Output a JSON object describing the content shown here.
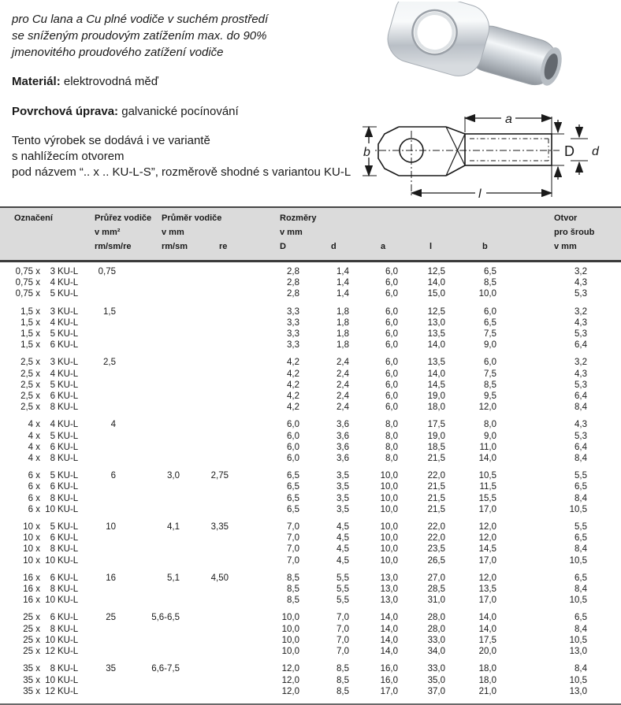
{
  "colors": {
    "header_bg": "#dbdbdb",
    "rule": "#3a3a3a",
    "text": "#1a1a1a"
  },
  "intro": {
    "lines": [
      "pro Cu lana a Cu plné vodiče v suchém prostředí",
      "se sníženým proudovým zatížením max. do 90%",
      "jmenovitého proudového zatížení vodiče"
    ]
  },
  "specs": {
    "material_label": "Materiál:",
    "material_value": "elektrovodná měď",
    "surface_label": "Povrchová úprava:",
    "surface_value": "galvanické pocínování"
  },
  "variant": {
    "lines": [
      "Tento výrobek se dodává i ve variantě",
      "s nahlížecím otvorem",
      "pod názvem “.. x .. KU-L-S”, rozměrově shodné s variantou KU-L"
    ]
  },
  "diagram": {
    "labels": {
      "a": "a",
      "b": "b",
      "D": "D",
      "d": "d",
      "l": "l"
    }
  },
  "table": {
    "kul_suffix": "KU-L",
    "header": {
      "designation": "Označení",
      "cross_title": "Průřez vodiče",
      "cross_unit": "v mm²",
      "cross_sub": "rm/sm/re",
      "dia_title": "Průměr vodiče",
      "dia_unit": "v mm",
      "dia_sub": "rm/sm",
      "dia_sub2": "re",
      "dims_title": "Rozměry",
      "dims_unit": "v mm",
      "dim_cols": [
        "D",
        "d",
        "a",
        "l",
        "b"
      ],
      "hole_title": "Otvor",
      "hole_sub": "pro šroub",
      "hole_unit": "v mm"
    },
    "groups": [
      {
        "rows": [
          [
            "0,75 x",
            "3",
            "0,75",
            "",
            "",
            "2,8",
            "1,4",
            "6,0",
            "12,5",
            "6,5",
            "3,2"
          ],
          [
            "0,75 x",
            "4",
            "",
            "",
            "",
            "2,8",
            "1,4",
            "6,0",
            "14,0",
            "8,5",
            "4,3"
          ],
          [
            "0,75 x",
            "5",
            "",
            "",
            "",
            "2,8",
            "1,4",
            "6,0",
            "15,0",
            "10,0",
            "5,3"
          ]
        ]
      },
      {
        "rows": [
          [
            "1,5 x",
            "3",
            "1,5",
            "",
            "",
            "3,3",
            "1,8",
            "6,0",
            "12,5",
            "6,0",
            "3,2"
          ],
          [
            "1,5 x",
            "4",
            "",
            "",
            "",
            "3,3",
            "1,8",
            "6,0",
            "13,0",
            "6,5",
            "4,3"
          ],
          [
            "1,5 x",
            "5",
            "",
            "",
            "",
            "3,3",
            "1,8",
            "6,0",
            "13,5",
            "7,5",
            "5,3"
          ],
          [
            "1,5 x",
            "6",
            "",
            "",
            "",
            "3,3",
            "1,8",
            "6,0",
            "14,0",
            "9,0",
            "6,4"
          ]
        ]
      },
      {
        "rows": [
          [
            "2,5 x",
            "3",
            "2,5",
            "",
            "",
            "4,2",
            "2,4",
            "6,0",
            "13,5",
            "6,0",
            "3,2"
          ],
          [
            "2,5 x",
            "4",
            "",
            "",
            "",
            "4,2",
            "2,4",
            "6,0",
            "14,0",
            "7,5",
            "4,3"
          ],
          [
            "2,5 x",
            "5",
            "",
            "",
            "",
            "4,2",
            "2,4",
            "6,0",
            "14,5",
            "8,5",
            "5,3"
          ],
          [
            "2,5 x",
            "6",
            "",
            "",
            "",
            "4,2",
            "2,4",
            "6,0",
            "19,0",
            "9,5",
            "6,4"
          ],
          [
            "2,5 x",
            "8",
            "",
            "",
            "",
            "4,2",
            "2,4",
            "6,0",
            "18,0",
            "12,0",
            "8,4"
          ]
        ]
      },
      {
        "rows": [
          [
            "4 x",
            "4",
            "4",
            "",
            "",
            "6,0",
            "3,6",
            "8,0",
            "17,5",
            "8,0",
            "4,3"
          ],
          [
            "4 x",
            "5",
            "",
            "",
            "",
            "6,0",
            "3,6",
            "8,0",
            "19,0",
            "9,0",
            "5,3"
          ],
          [
            "4 x",
            "6",
            "",
            "",
            "",
            "6,0",
            "3,6",
            "8,0",
            "18,5",
            "11,0",
            "6,4"
          ],
          [
            "4 x",
            "8",
            "",
            "",
            "",
            "6,0",
            "3,6",
            "8,0",
            "21,5",
            "14,0",
            "8,4"
          ]
        ]
      },
      {
        "rows": [
          [
            "6 x",
            "5",
            "6",
            "3,0",
            "2,75",
            "6,5",
            "3,5",
            "10,0",
            "22,0",
            "10,5",
            "5,5"
          ],
          [
            "6 x",
            "6",
            "",
            "",
            "",
            "6,5",
            "3,5",
            "10,0",
            "21,5",
            "11,5",
            "6,5"
          ],
          [
            "6 x",
            "8",
            "",
            "",
            "",
            "6,5",
            "3,5",
            "10,0",
            "21,5",
            "15,5",
            "8,4"
          ],
          [
            "6 x",
            "10",
            "",
            "",
            "",
            "6,5",
            "3,5",
            "10,0",
            "21,5",
            "17,0",
            "10,5"
          ]
        ]
      },
      {
        "rows": [
          [
            "10 x",
            "5",
            "10",
            "4,1",
            "3,35",
            "7,0",
            "4,5",
            "10,0",
            "22,0",
            "12,0",
            "5,5"
          ],
          [
            "10 x",
            "6",
            "",
            "",
            "",
            "7,0",
            "4,5",
            "10,0",
            "22,0",
            "12,0",
            "6,5"
          ],
          [
            "10 x",
            "8",
            "",
            "",
            "",
            "7,0",
            "4,5",
            "10,0",
            "23,5",
            "14,5",
            "8,4"
          ],
          [
            "10 x",
            "10",
            "",
            "",
            "",
            "7,0",
            "4,5",
            "10,0",
            "26,5",
            "17,0",
            "10,5"
          ]
        ]
      },
      {
        "rows": [
          [
            "16 x",
            "6",
            "16",
            "5,1",
            "4,50",
            "8,5",
            "5,5",
            "13,0",
            "27,0",
            "12,0",
            "6,5"
          ],
          [
            "16 x",
            "8",
            "",
            "",
            "",
            "8,5",
            "5,5",
            "13,0",
            "28,5",
            "13,5",
            "8,4"
          ],
          [
            "16 x",
            "10",
            "",
            "",
            "",
            "8,5",
            "5,5",
            "13,0",
            "31,0",
            "17,0",
            "10,5"
          ]
        ]
      },
      {
        "rows": [
          [
            "25 x",
            "6",
            "25",
            "5,6-6,5",
            "",
            "10,0",
            "7,0",
            "14,0",
            "28,0",
            "14,0",
            "6,5"
          ],
          [
            "25 x",
            "8",
            "",
            "",
            "",
            "10,0",
            "7,0",
            "14,0",
            "28,0",
            "14,0",
            "8,4"
          ],
          [
            "25 x",
            "10",
            "",
            "",
            "",
            "10,0",
            "7,0",
            "14,0",
            "33,0",
            "17,5",
            "10,5"
          ],
          [
            "25 x",
            "12",
            "",
            "",
            "",
            "10,0",
            "7,0",
            "14,0",
            "34,0",
            "20,0",
            "13,0"
          ]
        ]
      },
      {
        "rows": [
          [
            "35 x",
            "8",
            "35",
            "6,6-7,5",
            "",
            "12,0",
            "8,5",
            "16,0",
            "33,0",
            "18,0",
            "8,4"
          ],
          [
            "35 x",
            "10",
            "",
            "",
            "",
            "12,0",
            "8,5",
            "16,0",
            "35,0",
            "18,0",
            "10,5"
          ],
          [
            "35 x",
            "12",
            "",
            "",
            "",
            "12,0",
            "8,5",
            "17,0",
            "37,0",
            "21,0",
            "13,0"
          ]
        ]
      }
    ]
  }
}
